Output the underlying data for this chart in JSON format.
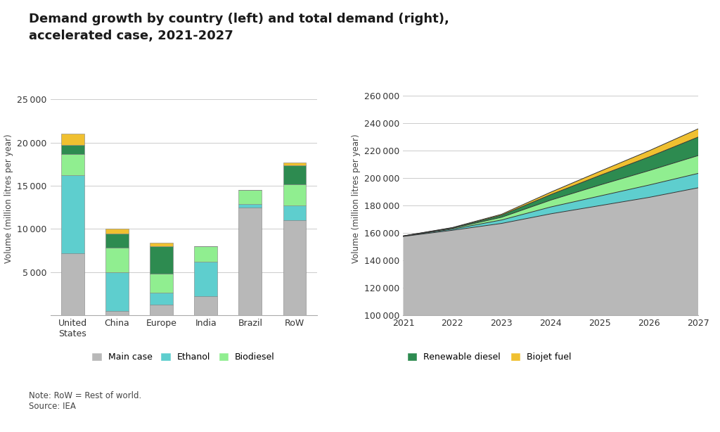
{
  "title": "Demand growth by country (left) and total demand (right),\naccelerated case, 2021-2027",
  "background_color": "#ffffff",
  "bar_categories": [
    "United\nStates",
    "China",
    "Europe",
    "India",
    "Brazil",
    "RoW"
  ],
  "bar_main_case": [
    7200,
    500,
    1200,
    2200,
    12500,
    11000
  ],
  "bar_ethanol": [
    9000,
    4500,
    1400,
    4000,
    400,
    1700
  ],
  "bar_biodiesel": [
    2500,
    2800,
    2200,
    1800,
    1600,
    2500
  ],
  "bar_renewable_diesel": [
    1000,
    1700,
    3200,
    0,
    0,
    2200
  ],
  "bar_biojet_fuel": [
    1300,
    500,
    400,
    0,
    0,
    300
  ],
  "bar_ylim": [
    0,
    27000
  ],
  "bar_yticks": [
    0,
    5000,
    10000,
    15000,
    20000,
    25000
  ],
  "bar_ylabel": "Volume (million litres per year)",
  "area_years": [
    2021,
    2022,
    2023,
    2024,
    2025,
    2026,
    2027
  ],
  "area_main_case": [
    157500,
    162000,
    167000,
    174000,
    180000,
    186000,
    193000
  ],
  "area_ethanol": [
    200,
    800,
    2500,
    5000,
    7000,
    9000,
    10500
  ],
  "area_biodiesel": [
    100,
    600,
    2000,
    5000,
    8000,
    10500,
    13000
  ],
  "area_renewable_diesel": [
    50,
    400,
    1500,
    4000,
    7000,
    10000,
    13500
  ],
  "area_biojet_fuel": [
    50,
    200,
    700,
    1800,
    3000,
    4500,
    6000
  ],
  "area_ylim": [
    100000,
    270000
  ],
  "area_yticks": [
    100000,
    120000,
    140000,
    160000,
    180000,
    200000,
    220000,
    240000,
    260000
  ],
  "area_ylabel": "Volume (million litres per year)",
  "color_main_case": "#b8b8b8",
  "color_ethanol": "#5ecece",
  "color_biodiesel": "#90ee90",
  "color_renewable_diesel": "#2d8b50",
  "color_biojet_fuel": "#f0c030",
  "note_text": "Note: RoW = Rest of world.\nSource: IEA"
}
